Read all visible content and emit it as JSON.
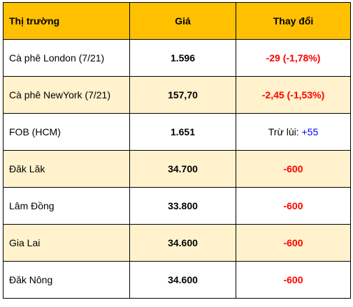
{
  "table": {
    "headers": {
      "market": "Thị trường",
      "price": "Giá",
      "change": "Thay đổi"
    },
    "rows": [
      {
        "market": "Cà phê London (7/21)",
        "price": "1.596",
        "change_prefix": "",
        "change": "-29 (-1,78%)",
        "change_dir": "down",
        "shaded": false
      },
      {
        "market": "Cà phê NewYork (7/21)",
        "price": "157,70",
        "change_prefix": "",
        "change": "-2,45 (-1,53%)",
        "change_dir": "down",
        "shaded": true
      },
      {
        "market": "FOB (HCM)",
        "price": "1.651",
        "change_prefix": "Trừ lùi: ",
        "change": "+55",
        "change_dir": "up",
        "shaded": false
      },
      {
        "market": "Đăk Lăk",
        "price": "34.700",
        "change_prefix": "",
        "change": "-600",
        "change_dir": "down",
        "shaded": true
      },
      {
        "market": "Lâm Đồng",
        "price": "33.800",
        "change_prefix": "",
        "change": "-600",
        "change_dir": "down",
        "shaded": false
      },
      {
        "market": "Gia Lai",
        "price": "34.600",
        "change_prefix": "",
        "change": "-600",
        "change_dir": "down",
        "shaded": true
      },
      {
        "market": "Đăk Nông",
        "price": "34.600",
        "change_prefix": "",
        "change": "-600",
        "change_dir": "down",
        "shaded": false
      }
    ]
  },
  "colors": {
    "header_bg": "#ffc000",
    "shaded_row_bg": "#fff2cc",
    "negative": "#ff0000",
    "positive": "#0000ff"
  }
}
